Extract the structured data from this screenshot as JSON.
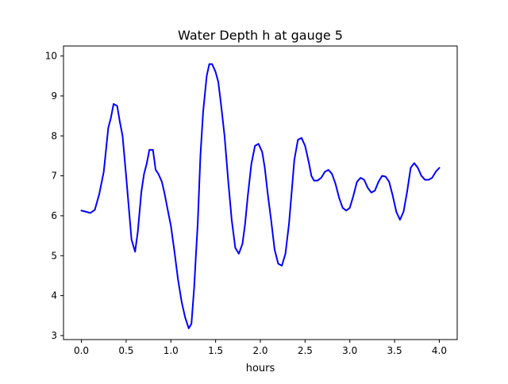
{
  "chart_data": {
    "type": "line",
    "title": "Water Depth h at gauge 5",
    "xlabel": "hours",
    "ylabel": "",
    "xlim": [
      -0.2,
      4.2
    ],
    "ylim": [
      2.9,
      10.25
    ],
    "xticks": [
      0.0,
      0.5,
      1.0,
      1.5,
      2.0,
      2.5,
      3.0,
      3.5,
      4.0
    ],
    "xtick_labels": [
      "0.0",
      "0.5",
      "1.0",
      "1.5",
      "2.0",
      "2.5",
      "3.0",
      "3.5",
      "4.0"
    ],
    "yticks": [
      3,
      4,
      5,
      6,
      7,
      8,
      9,
      10
    ],
    "ytick_labels": [
      "3",
      "4",
      "5",
      "6",
      "7",
      "8",
      "9",
      "10"
    ],
    "grid": false,
    "legend": "none",
    "series": [
      {
        "color": "#0000ff",
        "x": [
          0.0,
          0.05,
          0.1,
          0.15,
          0.2,
          0.25,
          0.3,
          0.33,
          0.36,
          0.4,
          0.43,
          0.46,
          0.5,
          0.53,
          0.56,
          0.6,
          0.63,
          0.67,
          0.7,
          0.73,
          0.76,
          0.8,
          0.83,
          0.86,
          0.9,
          0.93,
          0.96,
          1.0,
          1.04,
          1.08,
          1.12,
          1.16,
          1.2,
          1.23,
          1.26,
          1.28,
          1.3,
          1.33,
          1.36,
          1.4,
          1.43,
          1.46,
          1.48,
          1.5,
          1.53,
          1.56,
          1.6,
          1.64,
          1.68,
          1.72,
          1.76,
          1.8,
          1.83,
          1.86,
          1.9,
          1.94,
          1.98,
          2.02,
          2.05,
          2.08,
          2.12,
          2.16,
          2.2,
          2.24,
          2.28,
          2.32,
          2.35,
          2.38,
          2.42,
          2.46,
          2.5,
          2.54,
          2.57,
          2.6,
          2.64,
          2.68,
          2.72,
          2.76,
          2.8,
          2.84,
          2.88,
          2.92,
          2.96,
          3.0,
          3.04,
          3.08,
          3.12,
          3.16,
          3.2,
          3.24,
          3.28,
          3.32,
          3.36,
          3.4,
          3.44,
          3.48,
          3.52,
          3.56,
          3.6,
          3.64,
          3.68,
          3.72,
          3.76,
          3.8,
          3.84,
          3.88,
          3.92,
          3.96,
          4.0
        ],
        "y": [
          6.13,
          6.1,
          6.07,
          6.15,
          6.55,
          7.1,
          8.2,
          8.45,
          8.8,
          8.75,
          8.35,
          8.0,
          7.0,
          6.2,
          5.4,
          5.1,
          5.6,
          6.6,
          7.05,
          7.3,
          7.65,
          7.65,
          7.15,
          7.05,
          6.85,
          6.55,
          6.2,
          5.75,
          5.1,
          4.4,
          3.85,
          3.45,
          3.18,
          3.3,
          4.2,
          5.0,
          5.8,
          7.5,
          8.6,
          9.5,
          9.8,
          9.8,
          9.7,
          9.6,
          9.35,
          8.8,
          8.0,
          6.9,
          5.9,
          5.2,
          5.05,
          5.3,
          5.8,
          6.5,
          7.3,
          7.75,
          7.8,
          7.6,
          7.2,
          6.6,
          5.9,
          5.15,
          4.8,
          4.75,
          5.05,
          5.8,
          6.6,
          7.4,
          7.9,
          7.95,
          7.75,
          7.35,
          7.0,
          6.88,
          6.88,
          6.95,
          7.1,
          7.15,
          7.05,
          6.8,
          6.45,
          6.2,
          6.13,
          6.2,
          6.5,
          6.85,
          6.95,
          6.9,
          6.7,
          6.58,
          6.63,
          6.85,
          7.0,
          6.98,
          6.85,
          6.5,
          6.1,
          5.9,
          6.1,
          6.6,
          7.2,
          7.32,
          7.2,
          7.0,
          6.9,
          6.9,
          6.95,
          7.1,
          7.2
        ]
      }
    ]
  }
}
